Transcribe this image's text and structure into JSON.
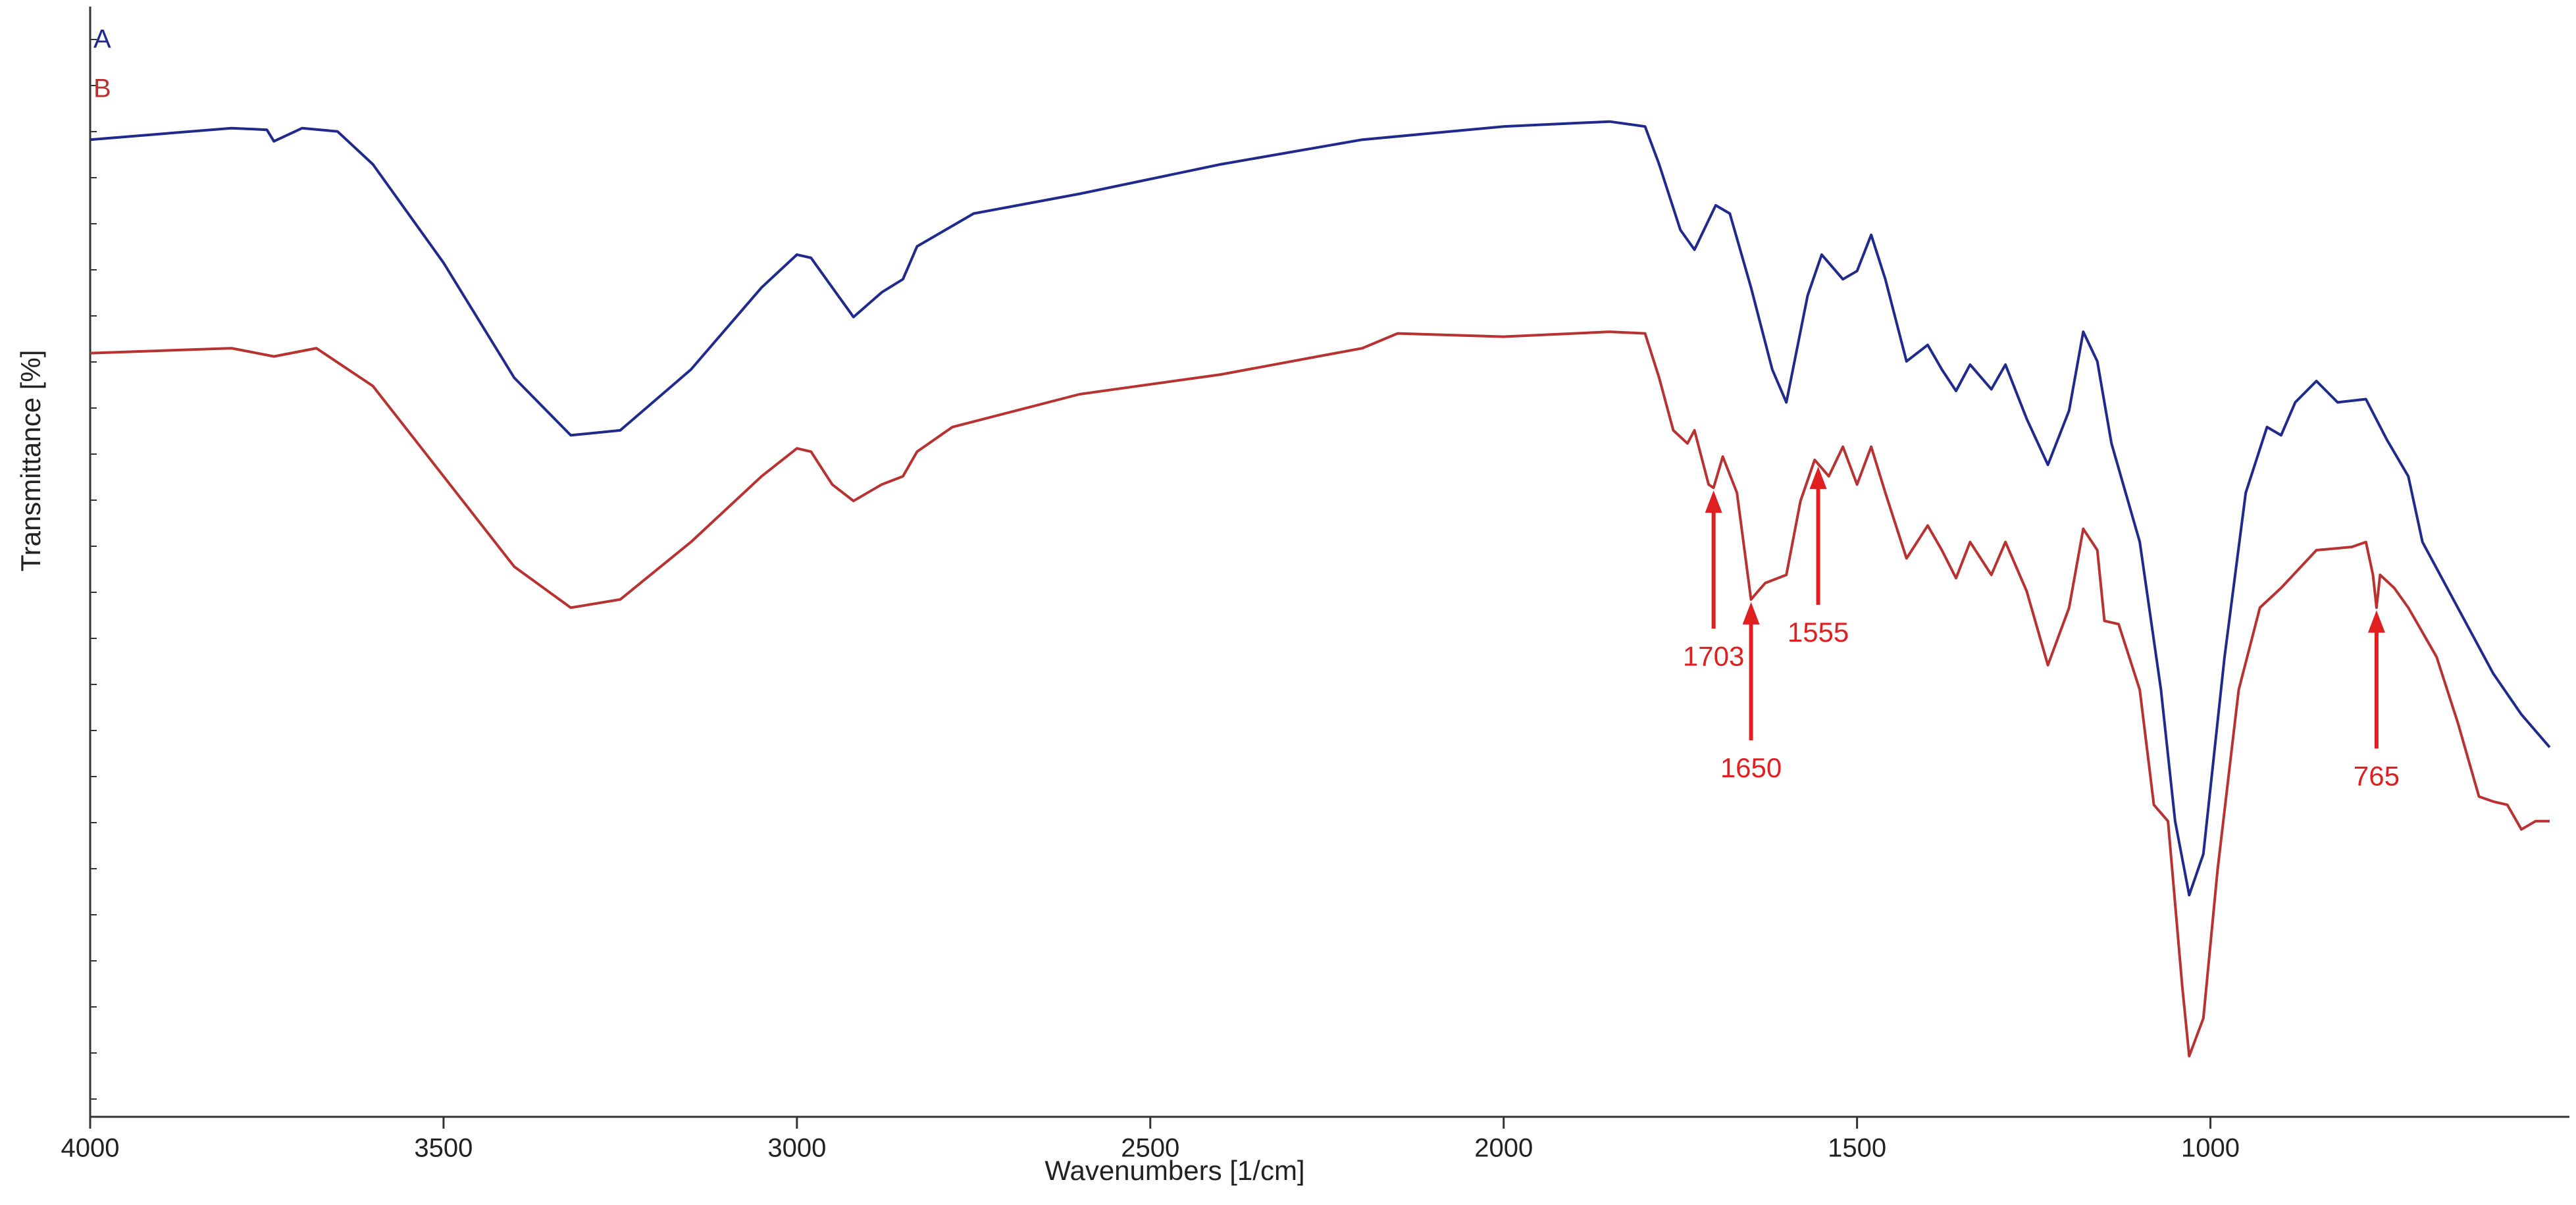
{
  "chart_data": {
    "type": "line",
    "xlabel": "Wavenumbers [1/cm]",
    "ylabel": "Transmittance [%]",
    "xlim": [
      4000,
      520
    ],
    "xticks": [
      4000,
      3500,
      3000,
      2500,
      2000,
      1500,
      1000
    ],
    "ylim": [
      0,
      67
    ],
    "series": [
      {
        "name": "A",
        "color": "#1f2a8c",
        "x": [
          4000,
          3800,
          3750,
          3740,
          3700,
          3650,
          3600,
          3500,
          3400,
          3320,
          3250,
          3150,
          3050,
          3000,
          2980,
          2950,
          2920,
          2880,
          2850,
          2830,
          2750,
          2600,
          2400,
          2200,
          2000,
          1850,
          1800,
          1780,
          1750,
          1730,
          1700,
          1680,
          1650,
          1620,
          1600,
          1570,
          1550,
          1520,
          1500,
          1480,
          1460,
          1430,
          1400,
          1380,
          1360,
          1340,
          1310,
          1290,
          1260,
          1230,
          1200,
          1180,
          1160,
          1140,
          1100,
          1070,
          1050,
          1030,
          1010,
          980,
          950,
          920,
          900,
          880,
          850,
          820,
          780,
          750,
          720,
          700,
          650,
          600,
          560,
          520
        ],
        "values": [
          59.5,
          60.2,
          60.1,
          59.4,
          60.2,
          60,
          58,
          52,
          45,
          41.5,
          41.8,
          45.5,
          50.5,
          52.5,
          52.3,
          50.5,
          48.7,
          50.2,
          51,
          53,
          55,
          56.2,
          58,
          59.5,
          60.3,
          60.6,
          60.3,
          58,
          54,
          52.8,
          55.5,
          55,
          50.5,
          45.5,
          43.5,
          50,
          52.5,
          51,
          51.5,
          53.7,
          51,
          46,
          47,
          45.5,
          44.2,
          45.8,
          44.3,
          45.8,
          42.5,
          39.7,
          43,
          47.8,
          46,
          41,
          35,
          26,
          18,
          13.5,
          16,
          28,
          38,
          42,
          41.5,
          43.5,
          44.8,
          43.5,
          43.7,
          41.2,
          39,
          35,
          31,
          27,
          24.5,
          22.5
        ]
      },
      {
        "name": "B",
        "color": "#b83232",
        "x": [
          4000,
          3800,
          3740,
          3680,
          3600,
          3500,
          3400,
          3320,
          3250,
          3150,
          3050,
          3000,
          2980,
          2950,
          2920,
          2880,
          2850,
          2830,
          2780,
          2600,
          2400,
          2200,
          2150,
          2000,
          1850,
          1800,
          1780,
          1760,
          1740,
          1730,
          1710,
          1703,
          1690,
          1670,
          1650,
          1630,
          1600,
          1580,
          1560,
          1540,
          1520,
          1500,
          1480,
          1460,
          1430,
          1400,
          1380,
          1360,
          1340,
          1310,
          1290,
          1260,
          1230,
          1200,
          1180,
          1160,
          1150,
          1130,
          1100,
          1080,
          1060,
          1040,
          1030,
          1010,
          990,
          960,
          930,
          900,
          850,
          800,
          780,
          770,
          765,
          760,
          740,
          720,
          700,
          680,
          650,
          620,
          600,
          580,
          560,
          540,
          520
        ],
        "values": [
          46.5,
          46.8,
          46.3,
          46.8,
          44.5,
          39,
          33.5,
          31,
          31.5,
          35,
          39,
          40.7,
          40.5,
          38.5,
          37.5,
          38.5,
          39,
          40.5,
          42,
          44,
          45.2,
          46.8,
          47.7,
          47.5,
          47.8,
          47.7,
          45,
          41.8,
          41,
          41.8,
          38.5,
          38.3,
          40.2,
          38,
          31.5,
          32.5,
          33,
          37.5,
          40,
          39,
          40.8,
          38.5,
          40.8,
          38,
          34,
          36,
          34.5,
          32.8,
          35,
          33,
          35,
          32,
          27.5,
          31,
          35.8,
          34.5,
          30.2,
          30,
          26,
          19,
          18,
          8,
          3.7,
          6,
          15,
          26,
          31,
          32.2,
          34.5,
          34.7,
          35,
          33,
          31,
          33,
          32.2,
          31,
          29.5,
          28,
          24,
          19.5,
          19.2,
          19,
          17.5,
          18,
          18
        ]
      }
    ],
    "annotations": [
      1703,
      1650,
      1555,
      765
    ],
    "annotation_color": "#e02020"
  }
}
